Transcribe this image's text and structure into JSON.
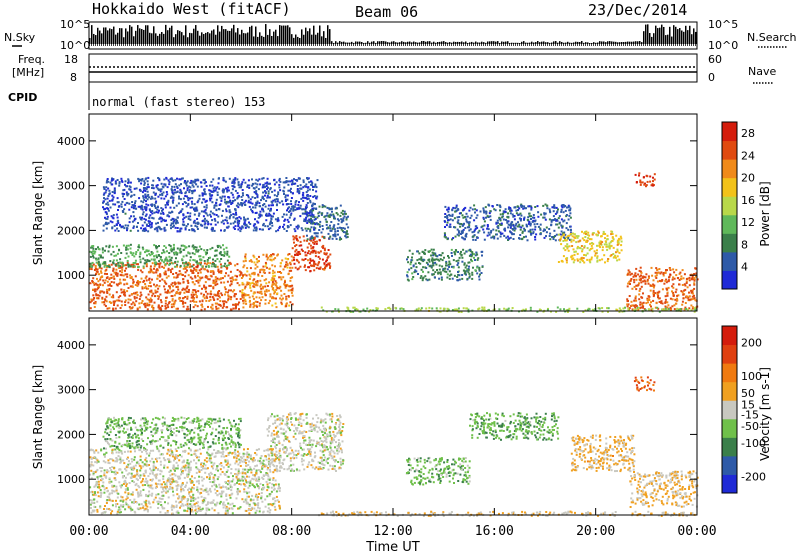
{
  "header": {
    "title": "Hokkaido West (fitACF)",
    "beam": "Beam 06",
    "date": "23/Dec/2014"
  },
  "strip_labels": {
    "nsky": "N.Sky",
    "nsearch": "N.Search",
    "freq_line1": "Freq.",
    "freq_line2": "[MHz]",
    "nave": "Nave",
    "cpid": "CPID",
    "cpid_text": "normal (fast stereo) 153",
    "noise_top_left": "10^5",
    "noise_bot_left": "10^0",
    "noise_top_right": "10^5",
    "noise_bot_right": "10^0",
    "freq_top": "18",
    "freq_bot": "8",
    "nave_top": "60",
    "nave_bot": "0"
  },
  "colors": {
    "power": [
      "#1f2ad6",
      "#2e5aa8",
      "#3a7f4a",
      "#5fb85a",
      "#b8d84a",
      "#f2c21a",
      "#f08a1a",
      "#e04a10",
      "#d41c0c"
    ],
    "velocity": [
      "#1f2ad6",
      "#2e5aa8",
      "#3a7f4a",
      "#6fc04a",
      "#c8c8c0",
      "#f0a020",
      "#f07a10",
      "#e04010",
      "#d41c0c"
    ]
  },
  "chart_data": [
    {
      "type": "heatmap",
      "title": "Power",
      "xlabel": "Time UT",
      "ylabel": "Slant Range [km]",
      "x_ticks": [
        "00:00",
        "04:00",
        "08:00",
        "12:00",
        "16:00",
        "20:00",
        "00:00"
      ],
      "y_ticks": [
        "1000",
        "2000",
        "3000",
        "4000"
      ],
      "ylim": [
        200,
        4600
      ],
      "colorbar_label": "Power [dB]",
      "colorbar_ticks": [
        "4",
        "8",
        "12",
        "16",
        "20",
        "24",
        "28"
      ],
      "colorbar_range": [
        0,
        30
      ],
      "regions": [
        {
          "t0": 0.0,
          "t1": 6.0,
          "r0": 250,
          "r1": 1300,
          "v": 24
        },
        {
          "t0": 0.0,
          "t1": 5.5,
          "r0": 1200,
          "r1": 1700,
          "v": 10
        },
        {
          "t0": 6.0,
          "t1": 8.0,
          "r0": 300,
          "r1": 1500,
          "v": 22
        },
        {
          "t0": 8.0,
          "t1": 9.5,
          "r0": 1100,
          "r1": 1900,
          "v": 26
        },
        {
          "t0": 8.5,
          "t1": 10.2,
          "r0": 1800,
          "r1": 2600,
          "v": 6
        },
        {
          "t0": 12.5,
          "t1": 15.5,
          "r0": 900,
          "r1": 1600,
          "v": 8
        },
        {
          "t0": 14.0,
          "t1": 19.0,
          "r0": 1800,
          "r1": 2600,
          "v": 5
        },
        {
          "t0": 18.5,
          "t1": 21.0,
          "r0": 1300,
          "r1": 2000,
          "v": 18
        },
        {
          "t0": 21.2,
          "t1": 24.0,
          "r0": 250,
          "r1": 1200,
          "v": 24
        },
        {
          "t0": 21.5,
          "t1": 22.3,
          "r0": 3000,
          "r1": 3300,
          "v": 26
        },
        {
          "t0": 0.5,
          "t1": 9.0,
          "r0": 2000,
          "r1": 3200,
          "v": 4
        },
        {
          "t0": 9.0,
          "t1": 24.0,
          "r0": 200,
          "r1": 300,
          "v": 14
        }
      ]
    },
    {
      "type": "heatmap",
      "title": "Velocity",
      "xlabel": "Time UT",
      "ylabel": "Slant Range [km]",
      "x_ticks": [
        "00:00",
        "04:00",
        "08:00",
        "12:00",
        "16:00",
        "20:00",
        "00:00"
      ],
      "y_ticks": [
        "1000",
        "2000",
        "3000",
        "4000"
      ],
      "ylim": [
        200,
        4600
      ],
      "colorbar_label": "Velocity [m s-1]",
      "colorbar_ticks": [
        "200",
        "100",
        "50",
        "15",
        "-15",
        "-50",
        "-100",
        "-200"
      ],
      "colorbar_range": [
        -250,
        250
      ],
      "regions": [
        {
          "t0": 0.0,
          "t1": 7.5,
          "r0": 250,
          "r1": 1700,
          "v": 0
        },
        {
          "t0": 7.0,
          "t1": 10.0,
          "r0": 1200,
          "r1": 2500,
          "v": 0
        },
        {
          "t0": 0.5,
          "t1": 6.0,
          "r0": 1700,
          "r1": 2400,
          "v": -60
        },
        {
          "t0": 12.5,
          "t1": 15.0,
          "r0": 900,
          "r1": 1500,
          "v": -60
        },
        {
          "t0": 15.0,
          "t1": 18.5,
          "r0": 1900,
          "r1": 2500,
          "v": -70
        },
        {
          "t0": 19.0,
          "t1": 21.5,
          "r0": 1200,
          "r1": 2000,
          "v": 40
        },
        {
          "t0": 21.3,
          "t1": 24.0,
          "r0": 400,
          "r1": 1200,
          "v": 30
        },
        {
          "t0": 21.5,
          "t1": 22.3,
          "r0": 3000,
          "r1": 3300,
          "v": 150
        },
        {
          "t0": 9.0,
          "t1": 24.0,
          "r0": 200,
          "r1": 300,
          "v": 20
        }
      ]
    }
  ]
}
